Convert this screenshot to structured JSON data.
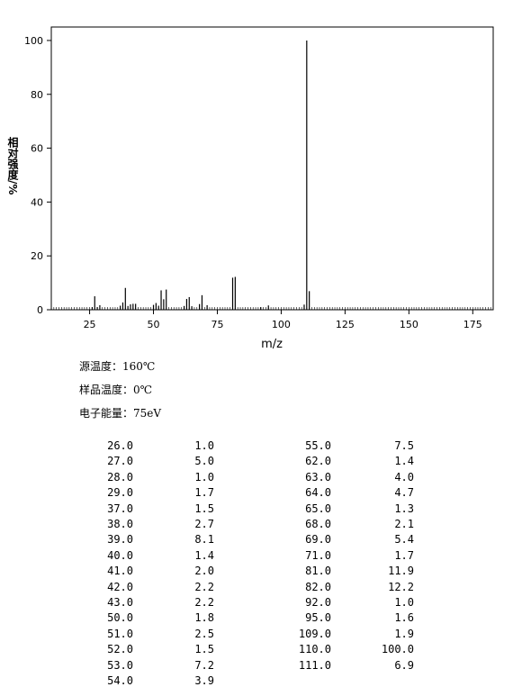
{
  "chart_data": {
    "type": "bar",
    "xlabel": "m/z",
    "ylabel": "相对强度/%",
    "x": [
      26,
      27,
      28,
      29,
      37,
      38,
      39,
      40,
      41,
      42,
      43,
      50,
      51,
      52,
      53,
      54,
      55,
      62,
      63,
      64,
      65,
      68,
      69,
      71,
      81,
      82,
      92,
      95,
      109,
      110,
      111
    ],
    "values": [
      1.0,
      5.0,
      1.0,
      1.7,
      1.5,
      2.7,
      8.1,
      1.4,
      2.0,
      2.2,
      2.2,
      1.8,
      2.5,
      1.5,
      7.2,
      3.9,
      7.5,
      1.4,
      4.0,
      4.7,
      1.3,
      2.1,
      5.4,
      1.7,
      11.9,
      12.2,
      1.0,
      1.6,
      1.9,
      100.0,
      6.9
    ],
    "color": "#000000",
    "xlim": [
      10,
      183
    ],
    "xticks": [
      25,
      50,
      75,
      100,
      125,
      150,
      175
    ],
    "ylim": [
      0,
      105
    ],
    "yticks": [
      0,
      20,
      40,
      60,
      80,
      100
    ]
  },
  "info": [
    "源温度：160℃",
    "样品温度：0℃",
    "电子能量：75eV"
  ],
  "table": {
    "left": [
      [
        "26.0",
        "1.0"
      ],
      [
        "27.0",
        "5.0"
      ],
      [
        "28.0",
        "1.0"
      ],
      [
        "29.0",
        "1.7"
      ],
      [
        "37.0",
        "1.5"
      ],
      [
        "38.0",
        "2.7"
      ],
      [
        "39.0",
        "8.1"
      ],
      [
        "40.0",
        "1.4"
      ],
      [
        "41.0",
        "2.0"
      ],
      [
        "42.0",
        "2.2"
      ],
      [
        "43.0",
        "2.2"
      ],
      [
        "50.0",
        "1.8"
      ],
      [
        "51.0",
        "2.5"
      ],
      [
        "52.0",
        "1.5"
      ],
      [
        "53.0",
        "7.2"
      ],
      [
        "54.0",
        "3.9"
      ]
    ],
    "right": [
      [
        "55.0",
        "7.5"
      ],
      [
        "62.0",
        "1.4"
      ],
      [
        "63.0",
        "4.0"
      ],
      [
        "64.0",
        "4.7"
      ],
      [
        "65.0",
        "1.3"
      ],
      [
        "68.0",
        "2.1"
      ],
      [
        "69.0",
        "5.4"
      ],
      [
        "71.0",
        "1.7"
      ],
      [
        "81.0",
        "11.9"
      ],
      [
        "82.0",
        "12.2"
      ],
      [
        "92.0",
        "1.0"
      ],
      [
        "95.0",
        "1.6"
      ],
      [
        "109.0",
        "1.9"
      ],
      [
        "110.0",
        "100.0"
      ],
      [
        "111.0",
        "6.9"
      ]
    ]
  }
}
